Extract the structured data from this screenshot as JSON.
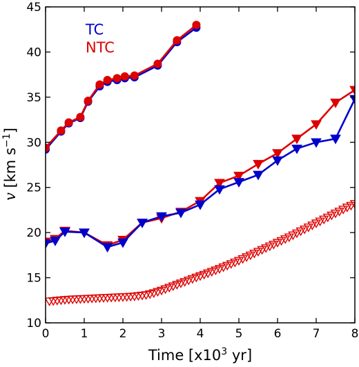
{
  "chart_data": {
    "type": "line",
    "xlabel_text": "Time [x10",
    "xlabel_sup": "3",
    "xlabel_unit": " yr]",
    "ylabel_var": "v",
    "ylabel_text": " [km s",
    "ylabel_sup": "−1",
    "ylabel_end": "]",
    "xlim": [
      0,
      8
    ],
    "ylim": [
      10,
      45
    ],
    "xticks": [
      "0",
      "1",
      "2",
      "3",
      "4",
      "5",
      "6",
      "7",
      "8"
    ],
    "yticks": [
      "10",
      "15",
      "20",
      "25",
      "30",
      "35",
      "40",
      "45"
    ],
    "grid": false,
    "legend": {
      "placement": "top-left",
      "entries": [
        {
          "label": "TC",
          "color": "#0000cc"
        },
        {
          "label": "NTC",
          "color": "#dd0000"
        }
      ]
    },
    "series": [
      {
        "group": "TC",
        "marker": "circle",
        "color": "#0000cc",
        "filled": true,
        "line": true,
        "x": [
          0,
          0.4,
          0.6,
          0.9,
          1.1,
          1.4,
          1.6,
          1.85,
          2.05,
          2.3,
          2.9,
          3.4,
          3.9
        ],
        "y": [
          29.2,
          31.2,
          32.1,
          32.7,
          34.5,
          36.2,
          36.7,
          36.9,
          37.1,
          37.2,
          38.5,
          41.1,
          42.7
        ]
      },
      {
        "group": "NTC",
        "marker": "circle",
        "color": "#dd0000",
        "filled": true,
        "line": true,
        "x": [
          0,
          0.4,
          0.6,
          0.9,
          1.1,
          1.4,
          1.6,
          1.85,
          2.05,
          2.3,
          2.9,
          3.4,
          3.9
        ],
        "y": [
          29.4,
          31.3,
          32.2,
          32.8,
          34.6,
          36.4,
          36.9,
          37.1,
          37.3,
          37.4,
          38.7,
          41.3,
          43.0
        ]
      },
      {
        "group": "NTC",
        "marker": "triangle-down",
        "color": "#dd0000",
        "filled": true,
        "line": true,
        "x": [
          0,
          0.25,
          0.5,
          1.0,
          1.6,
          2.0,
          2.5,
          3.0,
          3.5,
          4.0,
          4.5,
          5.0,
          5.5,
          6.0,
          6.5,
          7.0,
          7.5,
          8.0
        ],
        "y": [
          19.0,
          19.3,
          20.2,
          20.0,
          18.6,
          19.2,
          21.1,
          21.6,
          22.3,
          23.5,
          25.5,
          26.3,
          27.6,
          28.8,
          30.4,
          32.0,
          34.4,
          35.8
        ]
      },
      {
        "group": "TC",
        "marker": "triangle-down",
        "color": "#0000cc",
        "filled": true,
        "line": true,
        "x": [
          0,
          0.25,
          0.5,
          1.0,
          1.6,
          2.0,
          2.5,
          3.0,
          3.5,
          4.0,
          4.5,
          5.0,
          5.5,
          6.0,
          6.5,
          7.0,
          7.5,
          8.0
        ],
        "y": [
          18.8,
          19.1,
          20.1,
          20.0,
          18.4,
          18.9,
          21.1,
          21.8,
          22.2,
          23.1,
          24.8,
          25.6,
          26.4,
          28.0,
          29.3,
          30.0,
          30.4,
          34.8
        ]
      },
      {
        "group": "NTC",
        "marker": "triangle-down",
        "color": "#dd0000",
        "filled": false,
        "line": false,
        "x": [
          0.1,
          0.2,
          0.3,
          0.4,
          0.5,
          0.6,
          0.7,
          0.8,
          0.9,
          1.0,
          1.1,
          1.2,
          1.3,
          1.4,
          1.5,
          1.6,
          1.7,
          1.8,
          1.9,
          2.0,
          2.1,
          2.2,
          2.3,
          2.4,
          2.5,
          2.6,
          2.7,
          2.8,
          2.9,
          3.0,
          3.1,
          3.2,
          3.3,
          3.4,
          3.5,
          3.6,
          3.7,
          3.8,
          3.9,
          4.0,
          4.1,
          4.2,
          4.3,
          4.4,
          4.5,
          4.6,
          4.7,
          4.8,
          4.9,
          5.0,
          5.1,
          5.2,
          5.3,
          5.4,
          5.5,
          5.6,
          5.7,
          5.8,
          5.9,
          6.0,
          6.1,
          6.2,
          6.3,
          6.4,
          6.5,
          6.6,
          6.7,
          6.8,
          6.9,
          7.0,
          7.1,
          7.2,
          7.3,
          7.4,
          7.5,
          7.6,
          7.7,
          7.8,
          7.9,
          8.0
        ],
        "y": [
          12.4,
          12.44,
          12.48,
          12.52,
          12.56,
          12.59,
          12.62,
          12.64,
          12.66,
          12.68,
          12.7,
          12.72,
          12.74,
          12.76,
          12.78,
          12.8,
          12.82,
          12.84,
          12.86,
          12.88,
          12.9,
          12.93,
          12.96,
          13.0,
          13.05,
          13.1,
          13.2,
          13.32,
          13.46,
          13.6,
          13.76,
          13.92,
          14.08,
          14.24,
          14.4,
          14.56,
          14.72,
          14.88,
          15.04,
          15.2,
          15.36,
          15.52,
          15.68,
          15.84,
          16.0,
          16.18,
          16.36,
          16.54,
          16.72,
          16.9,
          17.1,
          17.3,
          17.5,
          17.7,
          17.9,
          18.1,
          18.3,
          18.5,
          18.7,
          18.9,
          19.1,
          19.3,
          19.5,
          19.72,
          19.94,
          20.16,
          20.38,
          20.6,
          20.82,
          21.04,
          21.26,
          21.48,
          21.7,
          21.92,
          22.14,
          22.36,
          22.58,
          22.8,
          23.0,
          23.2
        ]
      }
    ]
  }
}
